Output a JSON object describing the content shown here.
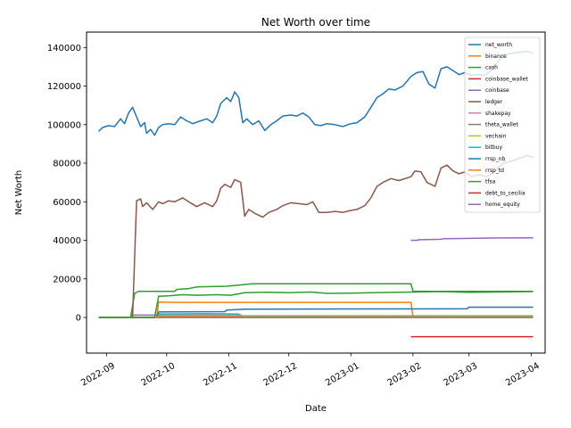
{
  "chart_data": {
    "type": "line",
    "title": "Net Worth over time",
    "xlabel": "Date",
    "ylabel": "Net Worth",
    "x_range": [
      "2022-08-22",
      "2023-04-08"
    ],
    "ylim": [
      -18500,
      148000
    ],
    "x_ticks": [
      "2022-09-01",
      "2022-10-01",
      "2022-11-01",
      "2022-12-01",
      "2023-01-01",
      "2023-02-01",
      "2023-03-01",
      "2023-04-01"
    ],
    "x_tick_labels": [
      "2022-09",
      "2022-10",
      "2022-11",
      "2022-12",
      "2023-01",
      "2023-02",
      "2023-03",
      "2023-04"
    ],
    "y_ticks": [
      0,
      20000,
      40000,
      60000,
      80000,
      100000,
      120000,
      140000
    ],
    "y_tick_labels": [
      "0",
      "20000",
      "40000",
      "60000",
      "80000",
      "100000",
      "120000",
      "140000"
    ],
    "grid": false,
    "legend_position": "top-right",
    "series": [
      {
        "name": "net_worth",
        "color": "#1f77b4",
        "points": [
          [
            "2022-08-28",
            96500
          ],
          [
            "2022-08-30",
            98500
          ],
          [
            "2022-09-02",
            99500
          ],
          [
            "2022-09-05",
            99000
          ],
          [
            "2022-09-08",
            103000
          ],
          [
            "2022-09-10",
            100500
          ],
          [
            "2022-09-12",
            106000
          ],
          [
            "2022-09-14",
            109000
          ],
          [
            "2022-09-16",
            104000
          ],
          [
            "2022-09-18",
            99000
          ],
          [
            "2022-09-20",
            101000
          ],
          [
            "2022-09-21",
            95500
          ],
          [
            "2022-09-23",
            97500
          ],
          [
            "2022-09-25",
            94500
          ],
          [
            "2022-09-27",
            98500
          ],
          [
            "2022-09-29",
            100000
          ],
          [
            "2022-10-02",
            100500
          ],
          [
            "2022-10-05",
            100000
          ],
          [
            "2022-10-08",
            104000
          ],
          [
            "2022-10-11",
            102000
          ],
          [
            "2022-10-14",
            100500
          ],
          [
            "2022-10-18",
            102000
          ],
          [
            "2022-10-21",
            103000
          ],
          [
            "2022-10-24",
            101000
          ],
          [
            "2022-10-26",
            104500
          ],
          [
            "2022-10-28",
            111000
          ],
          [
            "2022-10-31",
            114000
          ],
          [
            "2022-11-02",
            112000
          ],
          [
            "2022-11-04",
            117000
          ],
          [
            "2022-11-06",
            114000
          ],
          [
            "2022-11-08",
            101000
          ],
          [
            "2022-11-10",
            103000
          ],
          [
            "2022-11-13",
            100000
          ],
          [
            "2022-11-16",
            102000
          ],
          [
            "2022-11-19",
            97000
          ],
          [
            "2022-11-22",
            100000
          ],
          [
            "2022-11-25",
            102000
          ],
          [
            "2022-11-28",
            104500
          ],
          [
            "2022-12-02",
            105000
          ],
          [
            "2022-12-05",
            104500
          ],
          [
            "2022-12-08",
            106000
          ],
          [
            "2022-12-11",
            104000
          ],
          [
            "2022-12-14",
            100000
          ],
          [
            "2022-12-17",
            99500
          ],
          [
            "2022-12-20",
            100500
          ],
          [
            "2022-12-24",
            100000
          ],
          [
            "2022-12-28",
            99000
          ],
          [
            "2023-01-01",
            100500
          ],
          [
            "2023-01-04",
            101000
          ],
          [
            "2023-01-08",
            104000
          ],
          [
            "2023-01-11",
            109000
          ],
          [
            "2023-01-14",
            114000
          ],
          [
            "2023-01-17",
            116000
          ],
          [
            "2023-01-20",
            118500
          ],
          [
            "2023-01-23",
            118000
          ],
          [
            "2023-01-27",
            120000
          ],
          [
            "2023-01-31",
            125000
          ],
          [
            "2023-02-03",
            127000
          ],
          [
            "2023-02-06",
            127500
          ],
          [
            "2023-02-09",
            121000
          ],
          [
            "2023-02-12",
            119000
          ],
          [
            "2023-02-15",
            129000
          ],
          [
            "2023-02-18",
            130000
          ],
          [
            "2023-02-21",
            128000
          ],
          [
            "2023-02-24",
            126000
          ],
          [
            "2023-02-27",
            127000
          ],
          [
            "2023-03-02",
            125500
          ],
          [
            "2023-03-05",
            126000
          ],
          [
            "2023-03-09",
            125500
          ],
          [
            "2023-03-12",
            128000
          ],
          [
            "2023-03-15",
            132000
          ],
          [
            "2023-03-18",
            136000
          ],
          [
            "2023-03-22",
            137000
          ],
          [
            "2023-03-26",
            137500
          ],
          [
            "2023-03-30",
            138000
          ],
          [
            "2023-04-02",
            137000
          ]
        ]
      },
      {
        "name": "binance",
        "color": "#ff7f0e",
        "points": [
          [
            "2022-08-28",
            0
          ],
          [
            "2022-09-26",
            0
          ],
          [
            "2022-09-27",
            8000
          ],
          [
            "2022-10-05",
            7800
          ],
          [
            "2022-11-10",
            7800
          ],
          [
            "2022-12-20",
            7800
          ],
          [
            "2023-01-31",
            7800
          ],
          [
            "2023-02-01",
            200
          ],
          [
            "2023-04-02",
            200
          ]
        ]
      },
      {
        "name": "cash",
        "color": "#2ca02c",
        "points": [
          [
            "2022-08-28",
            0
          ],
          [
            "2022-09-13",
            0
          ],
          [
            "2022-09-15",
            12500
          ],
          [
            "2022-09-17",
            13500
          ],
          [
            "2022-10-05",
            13500
          ],
          [
            "2022-10-06",
            14500
          ],
          [
            "2022-10-12",
            15000
          ],
          [
            "2022-10-16",
            15800
          ],
          [
            "2022-10-31",
            16200
          ],
          [
            "2022-11-13",
            17500
          ],
          [
            "2022-12-20",
            17500
          ],
          [
            "2023-01-31",
            17500
          ],
          [
            "2023-02-01",
            13500
          ],
          [
            "2023-03-01",
            13500
          ],
          [
            "2023-04-02",
            13500
          ]
        ]
      },
      {
        "name": "coinbase_wallet",
        "color": "#d62728",
        "points": [
          [
            "2022-08-28",
            0
          ],
          [
            "2023-04-02",
            0
          ]
        ]
      },
      {
        "name": "coinbase",
        "color": "#9467bd",
        "points": [
          [
            "2022-08-28",
            0
          ],
          [
            "2022-09-13",
            0
          ],
          [
            "2022-09-14",
            1200
          ],
          [
            "2022-11-07",
            1200
          ],
          [
            "2022-11-08",
            500
          ],
          [
            "2023-04-02",
            500
          ]
        ]
      },
      {
        "name": "ledger",
        "color": "#8c564b",
        "points": [
          [
            "2022-08-28",
            0
          ],
          [
            "2022-09-14",
            0
          ],
          [
            "2022-09-16",
            60500
          ],
          [
            "2022-09-18",
            61500
          ],
          [
            "2022-09-19",
            57500
          ],
          [
            "2022-09-21",
            59500
          ],
          [
            "2022-09-24",
            56000
          ],
          [
            "2022-09-27",
            60000
          ],
          [
            "2022-09-29",
            59000
          ],
          [
            "2022-10-02",
            60500
          ],
          [
            "2022-10-05",
            60000
          ],
          [
            "2022-10-09",
            62000
          ],
          [
            "2022-10-12",
            60000
          ],
          [
            "2022-10-16",
            57500
          ],
          [
            "2022-10-20",
            59500
          ],
          [
            "2022-10-24",
            57500
          ],
          [
            "2022-10-26",
            60500
          ],
          [
            "2022-10-28",
            67000
          ],
          [
            "2022-10-30",
            69000
          ],
          [
            "2022-11-02",
            67500
          ],
          [
            "2022-11-04",
            71500
          ],
          [
            "2022-11-07",
            70000
          ],
          [
            "2022-11-09",
            52500
          ],
          [
            "2022-11-11",
            56000
          ],
          [
            "2022-11-14",
            54000
          ],
          [
            "2022-11-18",
            52000
          ],
          [
            "2022-11-21",
            54500
          ],
          [
            "2022-11-25",
            56000
          ],
          [
            "2022-11-28",
            58000
          ],
          [
            "2022-12-02",
            59500
          ],
          [
            "2022-12-06",
            59000
          ],
          [
            "2022-12-10",
            58500
          ],
          [
            "2022-12-13",
            60000
          ],
          [
            "2022-12-16",
            54500
          ],
          [
            "2022-12-20",
            54500
          ],
          [
            "2022-12-24",
            55000
          ],
          [
            "2022-12-28",
            54500
          ],
          [
            "2023-01-01",
            55500
          ],
          [
            "2023-01-04",
            56000
          ],
          [
            "2023-01-08",
            58000
          ],
          [
            "2023-01-11",
            62000
          ],
          [
            "2023-01-14",
            68000
          ],
          [
            "2023-01-17",
            70000
          ],
          [
            "2023-01-21",
            72000
          ],
          [
            "2023-01-25",
            71000
          ],
          [
            "2023-01-31",
            73000
          ],
          [
            "2023-02-02",
            76000
          ],
          [
            "2023-02-05",
            75500
          ],
          [
            "2023-02-08",
            70000
          ],
          [
            "2023-02-12",
            68000
          ],
          [
            "2023-02-15",
            77500
          ],
          [
            "2023-02-18",
            79000
          ],
          [
            "2023-02-21",
            76000
          ],
          [
            "2023-02-24",
            74500
          ],
          [
            "2023-02-27",
            75500
          ],
          [
            "2023-03-02",
            73000
          ],
          [
            "2023-03-06",
            74000
          ],
          [
            "2023-03-10",
            73000
          ],
          [
            "2023-03-14",
            76000
          ],
          [
            "2023-03-18",
            80000
          ],
          [
            "2023-03-22",
            81000
          ],
          [
            "2023-03-26",
            82500
          ],
          [
            "2023-03-30",
            84000
          ],
          [
            "2023-04-02",
            83000
          ]
        ]
      },
      {
        "name": "shakepay",
        "color": "#e377c2",
        "points": [
          [
            "2022-08-28",
            0
          ],
          [
            "2022-09-26",
            0
          ],
          [
            "2022-09-27",
            300
          ],
          [
            "2023-04-02",
            300
          ]
        ]
      },
      {
        "name": "theta_wallet",
        "color": "#7f7f7f",
        "points": [
          [
            "2022-08-28",
            0
          ],
          [
            "2023-04-02",
            0
          ]
        ]
      },
      {
        "name": "vechain",
        "color": "#bcbd22",
        "points": [
          [
            "2022-08-28",
            0
          ],
          [
            "2022-09-26",
            0
          ],
          [
            "2022-09-27",
            1000
          ],
          [
            "2022-11-07",
            1000
          ],
          [
            "2022-11-08",
            600
          ],
          [
            "2023-04-02",
            600
          ]
        ]
      },
      {
        "name": "bitbuy",
        "color": "#17becf",
        "points": [
          [
            "2022-08-28",
            0
          ],
          [
            "2022-09-26",
            0
          ],
          [
            "2022-09-27",
            1800
          ],
          [
            "2022-10-20",
            2000
          ],
          [
            "2022-11-06",
            1800
          ],
          [
            "2022-11-08",
            400
          ],
          [
            "2023-04-02",
            400
          ]
        ]
      },
      {
        "name": "rrsp_nb",
        "color": "#1f77b4",
        "points": [
          [
            "2022-08-28",
            0
          ],
          [
            "2022-09-26",
            0
          ],
          [
            "2022-09-27",
            2800
          ],
          [
            "2022-10-02",
            2900
          ],
          [
            "2022-10-30",
            3000
          ],
          [
            "2022-10-31",
            3800
          ],
          [
            "2022-11-09",
            4300
          ],
          [
            "2023-02-28",
            4500
          ],
          [
            "2023-03-01",
            5300
          ],
          [
            "2023-04-02",
            5300
          ]
        ]
      },
      {
        "name": "rrsp_td",
        "color": "#ff7f0e",
        "points": [
          [
            "2022-08-28",
            0
          ],
          [
            "2022-09-26",
            0
          ],
          [
            "2022-09-27",
            800
          ],
          [
            "2023-04-02",
            800
          ]
        ]
      },
      {
        "name": "tfsa",
        "color": "#2ca02c",
        "points": [
          [
            "2022-08-28",
            0
          ],
          [
            "2022-09-25",
            0
          ],
          [
            "2022-09-27",
            11000
          ],
          [
            "2022-10-02",
            11200
          ],
          [
            "2022-10-09",
            11800
          ],
          [
            "2022-10-16",
            11500
          ],
          [
            "2022-10-26",
            11800
          ],
          [
            "2022-11-02",
            11500
          ],
          [
            "2022-11-09",
            12800
          ],
          [
            "2022-11-20",
            13100
          ],
          [
            "2022-12-01",
            12800
          ],
          [
            "2022-12-12",
            13200
          ],
          [
            "2022-12-20",
            12500
          ],
          [
            "2023-01-01",
            12600
          ],
          [
            "2023-01-15",
            12900
          ],
          [
            "2023-02-01",
            13200
          ],
          [
            "2023-02-15",
            13400
          ],
          [
            "2023-03-01",
            13000
          ],
          [
            "2023-03-15",
            13200
          ],
          [
            "2023-04-02",
            13400
          ]
        ]
      },
      {
        "name": "debt_to_cecilia",
        "color": "#d62728",
        "points": [
          [
            "2023-01-31",
            -10000
          ],
          [
            "2023-04-02",
            -10000
          ]
        ]
      },
      {
        "name": "home_equity",
        "color": "#9467bd",
        "points": [
          [
            "2023-01-31",
            40000
          ],
          [
            "2023-02-03",
            40000
          ],
          [
            "2023-02-04",
            40300
          ],
          [
            "2023-02-15",
            40500
          ],
          [
            "2023-02-16",
            40800
          ],
          [
            "2023-03-01",
            41000
          ],
          [
            "2023-03-15",
            41200
          ],
          [
            "2023-04-02",
            41300
          ]
        ]
      }
    ]
  }
}
